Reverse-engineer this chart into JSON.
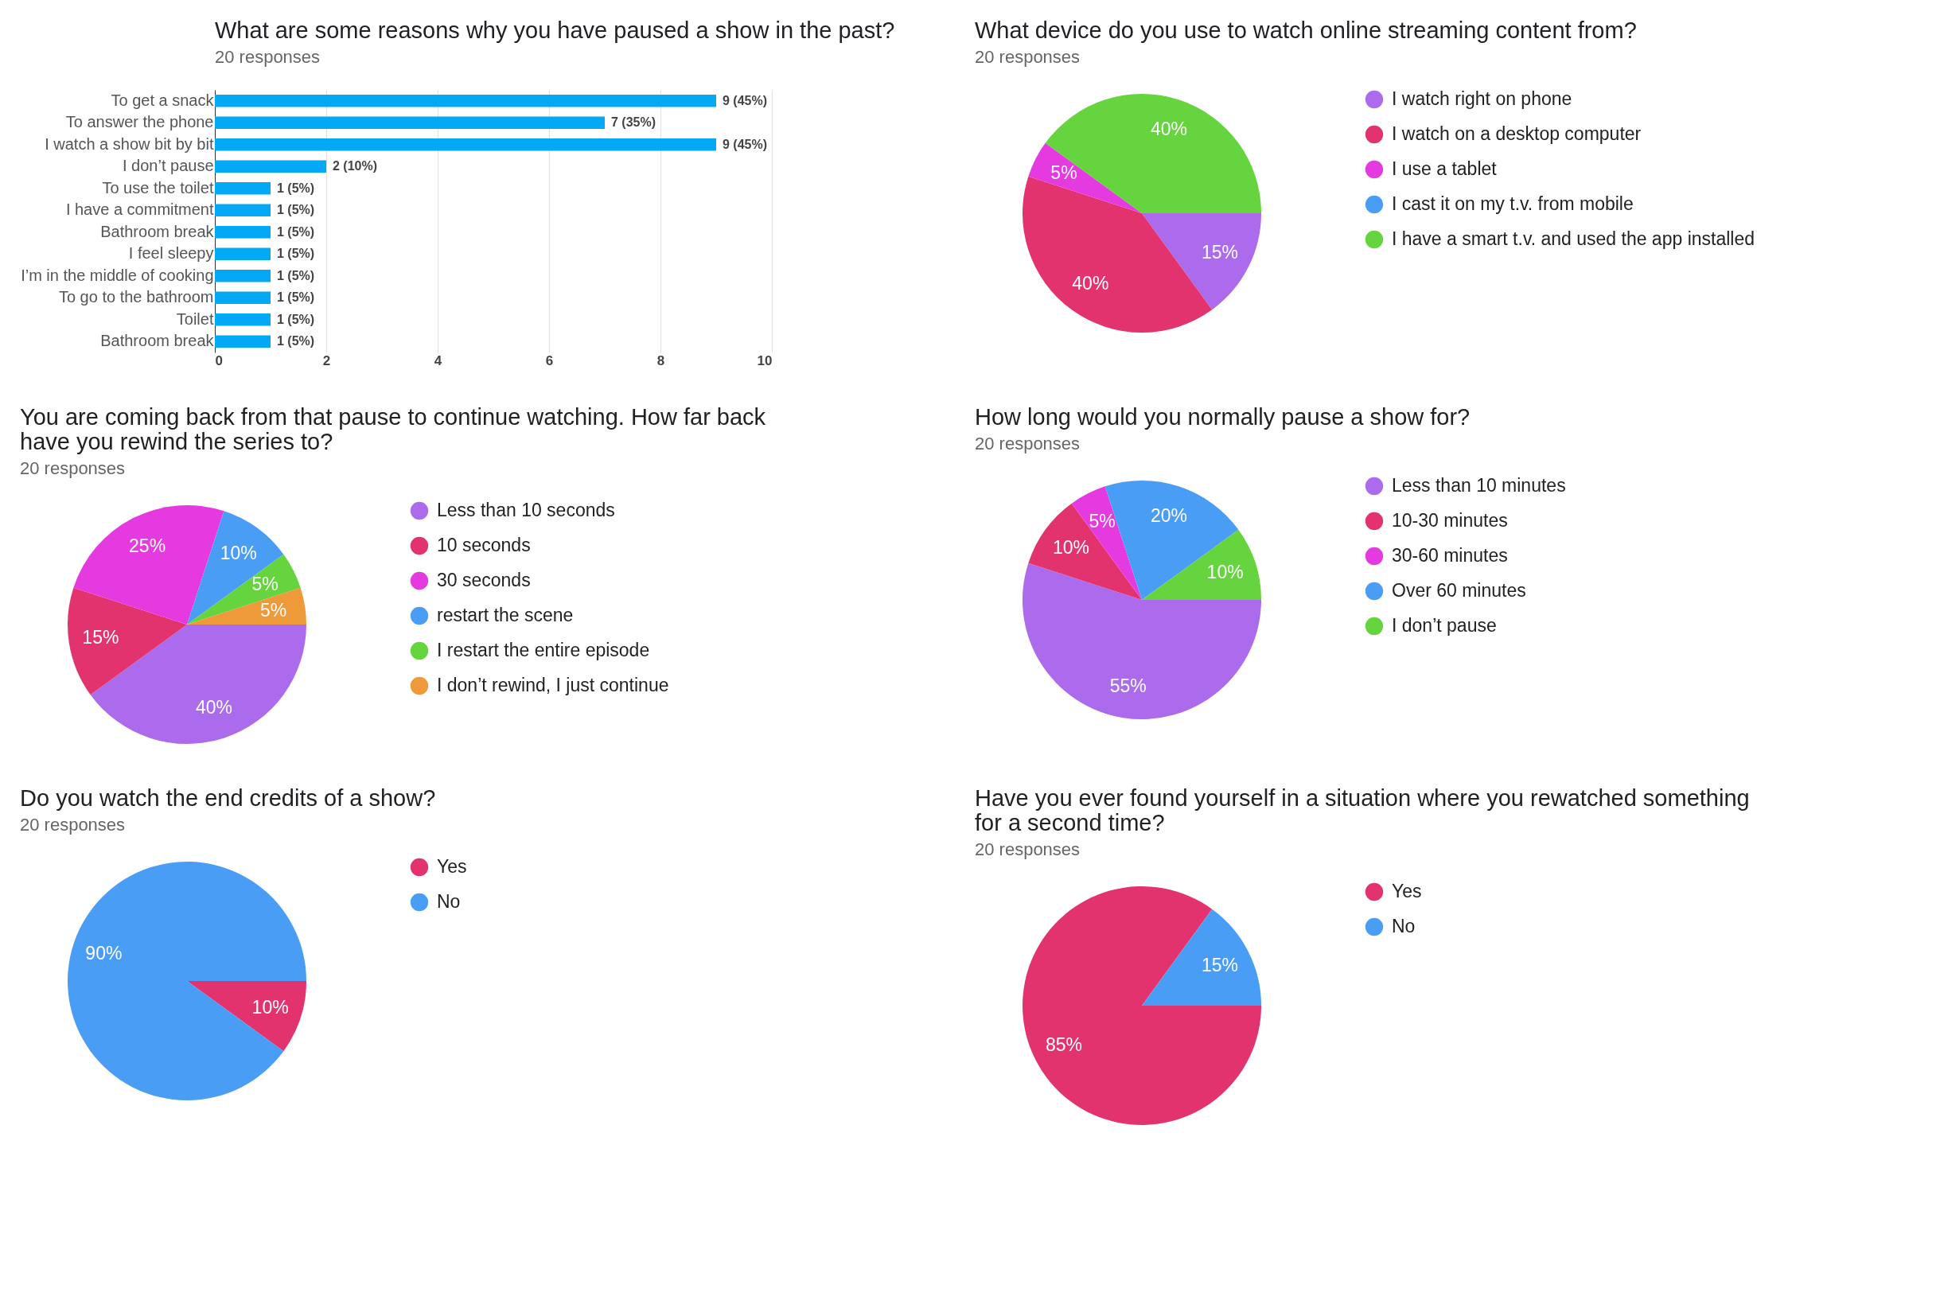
{
  "chart_data": [
    {
      "type": "bar",
      "orientation": "horizontal",
      "title": "What are some reasons why you have paused a show in the past?",
      "subtitle": "20 responses",
      "categories": [
        "To get a snack",
        "To answer the phone",
        "I watch a show bit by bit",
        "I don’t pause",
        "To use the toilet",
        "I have a commitment",
        "Bathroom break",
        "I feel sleepy",
        "I’m in the middle of cooking",
        "To go to the bathroom",
        "Toilet",
        "Bathroom break"
      ],
      "values": [
        9,
        7,
        9,
        2,
        1,
        1,
        1,
        1,
        1,
        1,
        1,
        1
      ],
      "value_labels": [
        "9 (45%)",
        "7 (35%)",
        "9 (45%)",
        "2 (10%)",
        "1 (5%)",
        "1 (5%)",
        "1 (5%)",
        "1 (5%)",
        "1 (5%)",
        "1 (5%)",
        "1 (5%)",
        "1 (5%)"
      ],
      "color": "#03a9f4",
      "xlim": [
        0,
        10
      ],
      "xticks": [
        0,
        2,
        4,
        6,
        8,
        10
      ],
      "grid": "x",
      "legend": false
    },
    {
      "type": "pie",
      "title": "What device do you use to watch online streaming content from?",
      "subtitle": "20 responses",
      "categories": [
        "I watch right on phone",
        "I watch on a desktop computer",
        "I use a tablet",
        "I cast it on my t.v. from mobile",
        "I have a smart t.v. and used the app installed"
      ],
      "values": [
        15,
        40,
        5,
        0,
        40
      ],
      "value_labels": [
        "15%",
        "40%",
        "5%",
        null,
        "40%"
      ],
      "colors": [
        "#ab6bec",
        "#e3336e",
        "#e53ae0",
        "#4a9df5",
        "#65d43f"
      ],
      "legend": "right"
    },
    {
      "type": "pie",
      "title": "You are coming back from that pause to continue watching. How far back have you rewind the series to?",
      "subtitle": "20 responses",
      "categories": [
        "Less than 10 seconds",
        "10 seconds",
        "30 seconds",
        "restart the scene",
        "I restart the entire episode",
        "I don’t rewind, I just continue"
      ],
      "values": [
        40,
        15,
        25,
        10,
        5,
        5
      ],
      "value_labels": [
        "40%",
        "15%",
        "25%",
        "10%",
        "5%",
        "5%"
      ],
      "colors": [
        "#ab6bec",
        "#e3336e",
        "#e53ae0",
        "#4a9df5",
        "#65d43f",
        "#ef9a3a"
      ],
      "legend": "right"
    },
    {
      "type": "pie",
      "title": "How long would you normally pause a show for?",
      "subtitle": "20 responses",
      "categories": [
        "Less than 10 minutes",
        "10-30 minutes",
        "30-60 minutes",
        "Over 60 minutes",
        "I don’t pause"
      ],
      "values": [
        55,
        10,
        5,
        20,
        10
      ],
      "value_labels": [
        "55%",
        "10%",
        "5%",
        "20%",
        "10%"
      ],
      "colors": [
        "#ab6bec",
        "#e3336e",
        "#e53ae0",
        "#4a9df5",
        "#65d43f"
      ],
      "legend": "right"
    },
    {
      "type": "pie",
      "title": "Do you watch the end credits of a show?",
      "subtitle": "20 responses",
      "categories": [
        "Yes",
        "No"
      ],
      "values": [
        10,
        90
      ],
      "value_labels": [
        "10%",
        "90%"
      ],
      "colors": [
        "#e3336e",
        "#4a9df5"
      ],
      "legend": "right"
    },
    {
      "type": "pie",
      "title": "Have you ever found yourself in a situation where you rewatched something for a second time?",
      "subtitle": "20 responses",
      "categories": [
        "Yes",
        "No"
      ],
      "values": [
        85,
        15
      ],
      "value_labels": [
        "85%",
        "15%"
      ],
      "colors": [
        "#e3336e",
        "#4a9df5"
      ],
      "legend": "right"
    }
  ]
}
